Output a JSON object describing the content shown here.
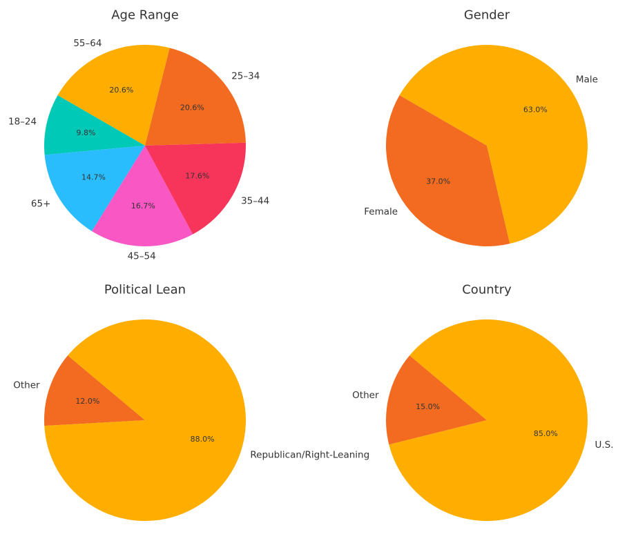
{
  "chart_data": [
    {
      "type": "pie",
      "title": "Age Range",
      "categories": [
        "18–24",
        "65+",
        "45–54",
        "35–44",
        "25–34",
        "55–64"
      ],
      "values": [
        9.8,
        14.7,
        16.7,
        17.6,
        20.6,
        20.6
      ],
      "value_labels": [
        "9.8%",
        "14.7%",
        "16.7%",
        "17.6%",
        "20.6%",
        "20.6%"
      ],
      "colors": [
        "#00c9b7",
        "#29bdfd",
        "#f957c4",
        "#f7345a",
        "#f26b21",
        "#ffae00"
      ]
    },
    {
      "type": "pie",
      "title": "Gender",
      "categories": [
        "Female",
        "Male"
      ],
      "values": [
        37.0,
        63.0
      ],
      "value_labels": [
        "37.0%",
        "63.0%"
      ],
      "colors": [
        "#f26b21",
        "#ffae00"
      ]
    },
    {
      "type": "pie",
      "title": "Political Lean",
      "categories": [
        "Other",
        "Republican/Right-Leaning"
      ],
      "values": [
        12.0,
        88.0
      ],
      "value_labels": [
        "12.0%",
        "88.0%"
      ],
      "colors": [
        "#f26b21",
        "#ffae00"
      ]
    },
    {
      "type": "pie",
      "title": "Country",
      "categories": [
        "Other",
        "U.S."
      ],
      "values": [
        15.0,
        85.0
      ],
      "value_labels": [
        "15.0%",
        "85.0%"
      ],
      "colors": [
        "#f26b21",
        "#ffae00"
      ]
    }
  ]
}
